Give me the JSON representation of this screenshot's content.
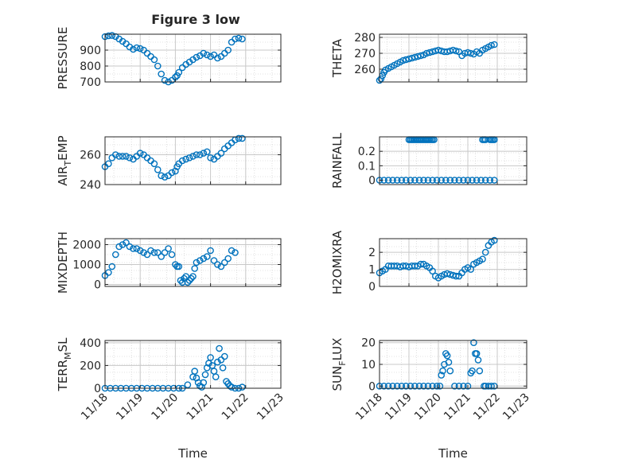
{
  "figure": {
    "title": "Figure 3 low"
  },
  "style": {
    "marker_color": "#0072BD",
    "axis_color": "#262626",
    "grid_color": "#c8c8c8",
    "background": "#ffffff"
  },
  "chart_data": [
    {
      "id": "pressure",
      "type": "scatter",
      "marker": "open-circle",
      "ylabel": "PRESSURE",
      "ylim": [
        700,
        1000
      ],
      "yticks": [
        700,
        800,
        900
      ],
      "xlim": [
        0,
        5
      ],
      "grid": true,
      "minor_grid": true,
      "show_xticks": false,
      "x": [
        0.0,
        0.1,
        0.2,
        0.3,
        0.4,
        0.5,
        0.6,
        0.7,
        0.8,
        0.9,
        1.0,
        1.1,
        1.2,
        1.3,
        1.4,
        1.5,
        1.6,
        1.7,
        1.8,
        1.9,
        2.0,
        2.05,
        2.1,
        2.2,
        2.3,
        2.4,
        2.5,
        2.6,
        2.7,
        2.8,
        2.9,
        3.0,
        3.1,
        3.2,
        3.3,
        3.4,
        3.5,
        3.6,
        3.7,
        3.8,
        3.9
      ],
      "y": [
        985,
        990,
        992,
        985,
        970,
        955,
        940,
        920,
        905,
        915,
        910,
        900,
        880,
        860,
        840,
        800,
        750,
        710,
        700,
        710,
        730,
        740,
        760,
        790,
        810,
        825,
        840,
        855,
        865,
        880,
        870,
        860,
        870,
        850,
        860,
        880,
        900,
        950,
        970,
        975,
        970
      ]
    },
    {
      "id": "theta",
      "type": "scatter",
      "marker": "open-circle",
      "ylabel": "THETA",
      "ylim": [
        252,
        282
      ],
      "yticks": [
        260,
        270,
        280
      ],
      "xlim": [
        0,
        5
      ],
      "grid": true,
      "minor_grid": true,
      "show_xticks": false,
      "x": [
        0.0,
        0.05,
        0.1,
        0.15,
        0.2,
        0.3,
        0.4,
        0.5,
        0.6,
        0.7,
        0.8,
        0.9,
        1.0,
        1.1,
        1.2,
        1.3,
        1.4,
        1.5,
        1.6,
        1.7,
        1.8,
        1.9,
        2.0,
        2.1,
        2.2,
        2.3,
        2.4,
        2.5,
        2.6,
        2.7,
        2.8,
        2.9,
        3.0,
        3.1,
        3.2,
        3.3,
        3.4,
        3.5,
        3.6,
        3.7,
        3.8,
        3.9
      ],
      "y": [
        253,
        254,
        256,
        258,
        259.5,
        260.5,
        261.5,
        262.5,
        263.5,
        264.5,
        265.5,
        266,
        266.5,
        267,
        267.5,
        268,
        268.5,
        269,
        270,
        270.5,
        271,
        271.5,
        272,
        271.5,
        271,
        271,
        271.5,
        272,
        271.5,
        271,
        268.5,
        270,
        270.5,
        270,
        269.5,
        271,
        270,
        272,
        273,
        274,
        275,
        275.5
      ]
    },
    {
      "id": "air_temp",
      "type": "scatter",
      "marker": "open-circle",
      "ylabel": "AIR",
      "ylabel_sub": "T",
      "ylabel_rest": "EMP",
      "ylim": [
        240,
        272
      ],
      "yticks": [
        240,
        260
      ],
      "xlim": [
        0,
        5
      ],
      "grid": true,
      "minor_grid": true,
      "show_xticks": false,
      "x": [
        0.0,
        0.1,
        0.2,
        0.3,
        0.4,
        0.5,
        0.6,
        0.7,
        0.8,
        0.9,
        1.0,
        1.1,
        1.2,
        1.3,
        1.4,
        1.5,
        1.6,
        1.7,
        1.8,
        1.9,
        2.0,
        2.05,
        2.1,
        2.2,
        2.3,
        2.4,
        2.5,
        2.6,
        2.7,
        2.8,
        2.9,
        3.0,
        3.1,
        3.2,
        3.3,
        3.4,
        3.5,
        3.6,
        3.7,
        3.8,
        3.9
      ],
      "y": [
        252,
        254,
        258,
        260,
        259,
        259,
        259,
        258,
        257,
        259,
        261,
        260,
        258,
        256,
        254,
        250,
        246,
        245,
        246,
        248,
        249,
        252,
        254,
        256,
        257,
        258,
        259,
        260,
        260,
        261,
        262,
        258,
        257,
        259,
        261,
        264,
        266,
        268,
        270,
        271,
        271
      ]
    },
    {
      "id": "rainfall",
      "type": "scatter",
      "marker": "open-circle",
      "ylabel": "RAINFALL",
      "ylim": [
        -0.03,
        0.3
      ],
      "yticks": [
        0,
        0.1,
        0.2
      ],
      "xlim": [
        0,
        5
      ],
      "grid": true,
      "minor_grid": true,
      "show_xticks": false,
      "x": [
        0.0,
        0.15,
        0.3,
        0.45,
        0.6,
        0.75,
        0.9,
        1.05,
        1.2,
        1.35,
        1.5,
        1.65,
        1.8,
        1.95,
        2.1,
        2.25,
        2.4,
        2.55,
        2.7,
        2.85,
        3.0,
        3.15,
        3.3,
        3.45,
        3.6,
        3.75,
        3.9,
        1.0,
        1.05,
        1.1,
        1.15,
        1.2,
        1.25,
        1.3,
        1.35,
        1.4,
        1.45,
        1.5,
        1.55,
        1.6,
        1.65,
        1.7,
        1.75,
        1.8,
        1.85,
        3.5,
        3.55,
        3.6,
        3.75,
        3.8,
        3.85,
        3.9
      ],
      "y": [
        0,
        0,
        0,
        0,
        0,
        0,
        0,
        0,
        0,
        0,
        0,
        0,
        0,
        0,
        0,
        0,
        0,
        0,
        0,
        0,
        0,
        0,
        0,
        0,
        0,
        0,
        0,
        0.28,
        0.28,
        0.28,
        0.28,
        0.28,
        0.28,
        0.28,
        0.28,
        0.28,
        0.28,
        0.28,
        0.28,
        0.28,
        0.28,
        0.28,
        0.28,
        0.28,
        0.28,
        0.28,
        0.28,
        0.28,
        0.28,
        0.28,
        0.28,
        0.28
      ]
    },
    {
      "id": "mixdepth",
      "type": "scatter",
      "marker": "open-circle",
      "ylabel": "MIXDEPTH",
      "ylim": [
        -100,
        2300
      ],
      "yticks": [
        0,
        1000,
        2000
      ],
      "xlim": [
        0,
        5
      ],
      "grid": true,
      "minor_grid": true,
      "show_xticks": false,
      "x": [
        0.0,
        0.1,
        0.2,
        0.3,
        0.4,
        0.5,
        0.6,
        0.7,
        0.8,
        0.9,
        1.0,
        1.1,
        1.2,
        1.3,
        1.4,
        1.5,
        1.6,
        1.7,
        1.8,
        1.9,
        2.0,
        2.05,
        2.1,
        2.15,
        2.2,
        2.25,
        2.3,
        2.35,
        2.4,
        2.45,
        2.5,
        2.55,
        2.6,
        2.7,
        2.8,
        2.9,
        3.0,
        3.1,
        3.2,
        3.3,
        3.4,
        3.5,
        3.6,
        3.7
      ],
      "y": [
        450,
        600,
        900,
        1500,
        1900,
        2000,
        2100,
        1900,
        1800,
        1800,
        1700,
        1600,
        1500,
        1700,
        1600,
        1600,
        1400,
        1600,
        1800,
        1500,
        1000,
        900,
        900,
        200,
        100,
        300,
        400,
        100,
        200,
        300,
        400,
        800,
        1100,
        1200,
        1300,
        1400,
        1700,
        1200,
        1000,
        900,
        1100,
        1300,
        1700,
        1600
      ]
    },
    {
      "id": "h2omixra",
      "type": "scatter",
      "marker": "open-circle",
      "ylabel": "H2OMIXRA",
      "ylim": [
        0,
        2.8
      ],
      "yticks": [
        0,
        1,
        2
      ],
      "xlim": [
        0,
        5
      ],
      "grid": true,
      "minor_grid": true,
      "show_xticks": false,
      "x": [
        0.0,
        0.1,
        0.2,
        0.3,
        0.4,
        0.5,
        0.6,
        0.7,
        0.8,
        0.9,
        1.0,
        1.1,
        1.2,
        1.3,
        1.4,
        1.5,
        1.6,
        1.7,
        1.8,
        1.9,
        2.0,
        2.1,
        2.2,
        2.3,
        2.4,
        2.5,
        2.6,
        2.7,
        2.8,
        2.9,
        3.0,
        3.1,
        3.2,
        3.3,
        3.4,
        3.5,
        3.6,
        3.7,
        3.8,
        3.9
      ],
      "y": [
        0.8,
        0.9,
        1.0,
        1.2,
        1.2,
        1.2,
        1.2,
        1.15,
        1.2,
        1.2,
        1.15,
        1.2,
        1.2,
        1.2,
        1.3,
        1.3,
        1.2,
        1.1,
        0.9,
        0.6,
        0.5,
        0.6,
        0.7,
        0.75,
        0.7,
        0.65,
        0.6,
        0.6,
        0.8,
        1.0,
        1.1,
        1.0,
        1.3,
        1.4,
        1.5,
        1.6,
        2.0,
        2.4,
        2.6,
        2.7
      ]
    },
    {
      "id": "terr_msl",
      "type": "scatter",
      "marker": "open-circle",
      "ylabel": "TERR",
      "ylabel_sub": "M",
      "ylabel_rest": "SL",
      "ylim": [
        0,
        420
      ],
      "yticks": [
        0,
        200,
        400
      ],
      "xlim": [
        0,
        5
      ],
      "grid": true,
      "minor_grid": true,
      "show_xticks": true,
      "xticks": [
        0,
        1,
        2,
        3,
        4,
        5
      ],
      "xticklabels": [
        "11/18",
        "11/19",
        "11/20",
        "11/21",
        "11/22",
        "11/23"
      ],
      "xlabel": "Time",
      "x": [
        0.0,
        0.15,
        0.3,
        0.45,
        0.6,
        0.75,
        0.9,
        1.05,
        1.2,
        1.35,
        1.5,
        1.65,
        1.8,
        1.95,
        2.1,
        2.2,
        2.35,
        2.5,
        2.55,
        2.6,
        2.65,
        2.7,
        2.75,
        2.8,
        2.85,
        2.9,
        2.95,
        3.0,
        3.05,
        3.1,
        3.15,
        3.2,
        3.25,
        3.3,
        3.35,
        3.4,
        3.45,
        3.5,
        3.55,
        3.6,
        3.7,
        3.8,
        3.9
      ],
      "y": [
        0,
        0,
        0,
        0,
        0,
        0,
        0,
        0,
        0,
        0,
        0,
        0,
        0,
        0,
        0,
        0,
        30,
        100,
        150,
        90,
        50,
        20,
        10,
        50,
        120,
        180,
        220,
        270,
        200,
        150,
        100,
        230,
        350,
        250,
        180,
        280,
        60,
        40,
        20,
        10,
        0,
        0,
        10
      ]
    },
    {
      "id": "sun_flux",
      "type": "scatter",
      "marker": "open-circle",
      "ylabel": "SUN",
      "ylabel_sub": "F",
      "ylabel_rest": "LUX",
      "ylim": [
        -1,
        21
      ],
      "yticks": [
        0,
        10,
        20
      ],
      "xlim": [
        0,
        5
      ],
      "grid": true,
      "minor_grid": true,
      "show_xticks": true,
      "xticks": [
        0,
        1,
        2,
        3,
        4,
        5
      ],
      "xticklabels": [
        "11/18",
        "11/19",
        "11/20",
        "11/21",
        "11/22",
        "11/23"
      ],
      "xlabel": "Time",
      "x": [
        0.0,
        0.15,
        0.3,
        0.45,
        0.6,
        0.75,
        0.9,
        1.05,
        1.2,
        1.35,
        1.5,
        1.65,
        1.8,
        1.95,
        2.05,
        2.1,
        2.15,
        2.2,
        2.25,
        2.3,
        2.35,
        2.4,
        2.55,
        2.7,
        2.85,
        3.0,
        3.1,
        3.15,
        3.2,
        3.25,
        3.3,
        3.35,
        3.4,
        3.55,
        3.6,
        3.7,
        3.8,
        3.9
      ],
      "y": [
        0,
        0,
        0,
        0,
        0,
        0,
        0,
        0,
        0,
        0,
        0,
        0,
        0,
        0,
        0,
        5,
        7,
        10,
        15,
        14,
        11,
        7,
        0,
        0,
        0,
        0,
        6,
        7,
        20,
        15,
        15,
        12,
        7,
        0,
        0,
        0,
        0,
        0
      ]
    }
  ]
}
